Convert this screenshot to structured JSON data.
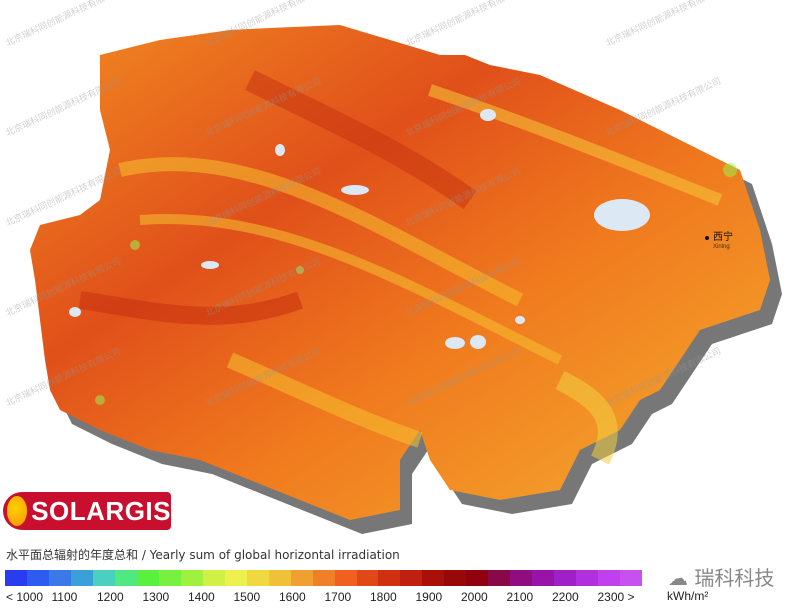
{
  "watermark": "北京瑞科同创能源科技有限公司",
  "brand_logo": "SOLARGIS",
  "city": {
    "name_cn": "西宁",
    "name_en": "Xining"
  },
  "legend": {
    "title": "水平面总辐射的年度总和 / Yearly sum of global horizontal irradiation",
    "ticks": [
      "< 1000",
      "1100",
      "1200",
      "1300",
      "1400",
      "1500",
      "1600",
      "1700",
      "1800",
      "1900",
      "2000",
      "2100",
      "2200",
      "2300 >"
    ],
    "unit": "kWh/m²",
    "colors": [
      "#2a3cf0",
      "#2f5cf0",
      "#3a7ae8",
      "#3aa0d8",
      "#4ad0c0",
      "#50e880",
      "#5af040",
      "#78f040",
      "#a0f040",
      "#d0f048",
      "#eef050",
      "#f0d840",
      "#f0c038",
      "#f0a030",
      "#f08028",
      "#f06020",
      "#e04818",
      "#d03010",
      "#c02010",
      "#a81008",
      "#980808",
      "#900010",
      "#880848",
      "#900c80",
      "#9814a8",
      "#a020c8",
      "#b030e0",
      "#c040f0",
      "#c850f0"
    ]
  },
  "wechat": "瑞科科技",
  "map_colors": {
    "base": "#f06a1c",
    "dark": "#d23c10",
    "light": "#f6b230",
    "green": "#9ef050",
    "lake": "#dce9f4",
    "shadow": "#777777"
  }
}
